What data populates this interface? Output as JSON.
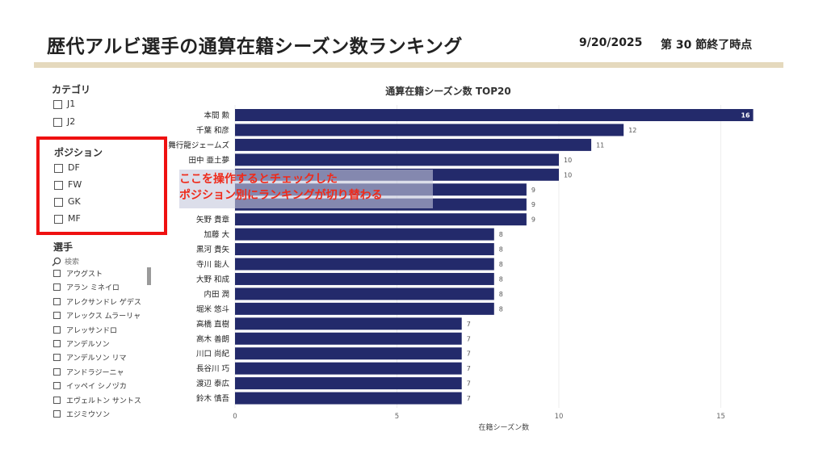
{
  "header": {
    "title": "歴代アルビ選手の通算在籍シーズン数ランキング",
    "date": "9/20/2025",
    "round": "第 30 節終了時点"
  },
  "filters": {
    "category": {
      "title": "カテゴリ",
      "options": [
        "J1",
        "J2"
      ]
    },
    "position": {
      "title": "ポジション",
      "options": [
        "DF",
        "FW",
        "GK",
        "MF"
      ]
    },
    "player": {
      "title": "選手",
      "search_placeholder": "検索",
      "options": [
        "アウグスト",
        "アラン ミネイロ",
        "アレクサンドレ ゲデス",
        "アレックス ムラーリャ",
        "アレッサンドロ",
        "アンデルソン",
        "アンデルソン リマ",
        "アンドラジーニャ",
        "イッペイ シノヅカ",
        "エヴェルトン サントス",
        "エジミウソン"
      ]
    }
  },
  "annotation": {
    "line1": "ここを操作するとチェックした",
    "line2": "ポジション別にランキングが切り替わる"
  },
  "colors": {
    "bar": "#232a6b",
    "highlight": "#ef1111",
    "annotation_text": "#ef2a1a",
    "header_rule": "#e5d9bd"
  },
  "chart_data": {
    "type": "bar",
    "orientation": "horizontal",
    "title": "通算在籍シーズン数 TOP20",
    "xlabel": "在籍シーズン数",
    "ylabel": "",
    "xlim": [
      0,
      16
    ],
    "xticks": [
      0,
      5,
      10,
      15
    ],
    "grid": true,
    "categories": [
      "本間 勲",
      "千葉 和彦",
      "舞行龍ジェームズ",
      "田中 亜土夢",
      "",
      "",
      "",
      "矢野 貴章",
      "加藤 大",
      "黒河 貴矢",
      "寺川 能人",
      "大野 和成",
      "内田 潤",
      "堀米 悠斗",
      "高橋 直樹",
      "高木 善朗",
      "川口 尚紀",
      "長谷川 巧",
      "渡辺 泰広",
      "鈴木 慎吾"
    ],
    "values": [
      16,
      12,
      11,
      10,
      10,
      9,
      9,
      9,
      8,
      8,
      8,
      8,
      8,
      8,
      7,
      7,
      7,
      7,
      7,
      7
    ]
  }
}
